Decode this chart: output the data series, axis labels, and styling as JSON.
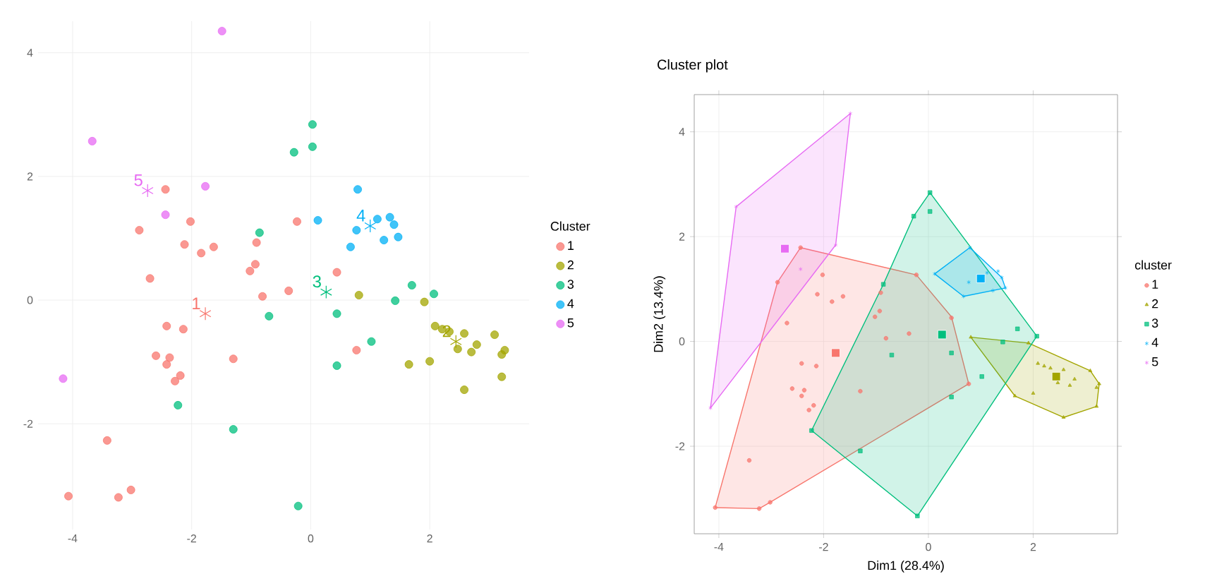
{
  "chart_data": [
    {
      "type": "scatter",
      "legend_title": "Cluster",
      "legend": "right",
      "grid": true,
      "xlim": [
        -4.58,
        3.67
      ],
      "ylim": [
        -3.71,
        4.51
      ],
      "xticks": [
        -4,
        -2,
        0,
        2
      ],
      "yticks": [
        -2,
        0,
        2,
        4
      ],
      "series": [
        {
          "name": "1",
          "color": "#f8766d",
          "marker": "circle",
          "x": [
            -2.44,
            -2.88,
            -2.02,
            -2.12,
            -1.84,
            -1.63,
            -0.91,
            -0.93,
            -1.02,
            -2.7,
            -0.23,
            0.44,
            -0.81,
            -0.37,
            -2.42,
            -2.14,
            -2.6,
            -2.37,
            -2.42,
            -2.19,
            -2.28,
            -1.3,
            0.77,
            -3.42,
            -4.07,
            -3.23,
            -3.02
          ],
          "values": [
            1.79,
            1.13,
            1.27,
            0.9,
            0.76,
            0.86,
            0.93,
            0.58,
            0.47,
            0.35,
            1.27,
            0.45,
            0.06,
            0.15,
            -0.42,
            -0.47,
            -0.9,
            -0.93,
            -1.04,
            -1.22,
            -1.31,
            -0.95,
            -0.81,
            -2.27,
            -3.17,
            -3.19,
            -3.07
          ]
        },
        {
          "name": "2",
          "color": "#a3a500",
          "marker": "circle",
          "x": [
            0.81,
            1.91,
            2.09,
            2.21,
            2.33,
            2.58,
            2.79,
            2.7,
            2.47,
            3.09,
            3.26,
            3.21,
            3.21,
            2.58,
            2.0,
            1.65
          ],
          "values": [
            0.08,
            -0.03,
            -0.42,
            -0.47,
            -0.51,
            -0.54,
            -0.72,
            -0.84,
            -0.79,
            -0.56,
            -0.81,
            -0.88,
            -1.24,
            -1.45,
            -0.99,
            -1.04
          ]
        },
        {
          "name": "3",
          "color": "#00bf7d",
          "marker": "circle",
          "x": [
            -0.28,
            0.03,
            0.03,
            -0.86,
            -0.7,
            0.44,
            0.44,
            -2.23,
            -1.3,
            -0.21,
            1.02,
            1.42,
            1.7,
            2.07
          ],
          "values": [
            2.39,
            2.84,
            2.48,
            1.09,
            -0.26,
            -0.22,
            -1.06,
            -1.7,
            -2.09,
            -3.33,
            -0.67,
            -0.01,
            0.24,
            0.1
          ]
        },
        {
          "name": "4",
          "color": "#00b0f6",
          "marker": "circle",
          "x": [
            0.79,
            0.12,
            0.77,
            0.67,
            1.12,
            1.33,
            1.4,
            1.47,
            1.23
          ],
          "values": [
            1.79,
            1.29,
            1.13,
            0.86,
            1.31,
            1.34,
            1.22,
            1.02,
            0.97
          ]
        },
        {
          "name": "5",
          "color": "#e76bf3",
          "marker": "circle",
          "x": [
            -1.49,
            -3.67,
            -1.77,
            -2.44,
            -4.16
          ],
          "values": [
            4.35,
            2.57,
            1.84,
            1.38,
            -1.27
          ]
        },
        {
          "marker": "cross",
          "x": [
            -1.77,
            2.44,
            0.26,
            1.0,
            -2.74
          ],
          "values": [
            -0.22,
            -0.67,
            0.13,
            1.2,
            1.77
          ],
          "colors": [
            "#f8766d",
            "#a3a500",
            "#00bf7d",
            "#00b0f6",
            "#e76bf3"
          ]
        }
      ],
      "annotations": [
        {
          "text": "1",
          "x": -1.77,
          "y": -0.22
        },
        {
          "text": "2",
          "x": 2.44,
          "y": -0.67
        },
        {
          "text": "3",
          "x": 0.26,
          "y": 0.13
        },
        {
          "text": "4",
          "x": 1.0,
          "y": 1.2
        },
        {
          "text": "5",
          "x": -2.74,
          "y": 1.77
        }
      ]
    },
    {
      "type": "scatter",
      "title": "Cluster plot",
      "xlabel": "Dim1 (28.4%)",
      "ylabel": "Dim2 (13.4%)",
      "legend_title": "cluster",
      "legend": "right",
      "grid": true,
      "xlim": [
        -4.47,
        3.61
      ],
      "ylim": [
        -3.67,
        4.71
      ],
      "xticks": [
        -4,
        -2,
        0,
        2
      ],
      "yticks": [
        -2,
        0,
        2,
        4
      ],
      "series": [
        {
          "type": "area",
          "color": "#f8766d",
          "x": [
            -2.44,
            -0.23,
            0.44,
            0.77,
            -3.02,
            -3.23,
            -4.07,
            -2.88
          ],
          "values": [
            1.79,
            1.27,
            0.47,
            -0.81,
            -3.07,
            -3.19,
            -3.17,
            1.13
          ]
        },
        {
          "type": "area",
          "color": "#a3a500",
          "x": [
            0.81,
            1.91,
            3.09,
            3.26,
            3.21,
            2.58,
            1.65
          ],
          "values": [
            0.08,
            -0.03,
            -0.56,
            -0.81,
            -1.24,
            -1.45,
            -1.04
          ]
        },
        {
          "type": "area",
          "color": "#00bf7d",
          "x": [
            0.03,
            2.07,
            -0.21,
            -2.23,
            -0.86,
            -0.28
          ],
          "values": [
            2.84,
            0.1,
            -3.33,
            -1.7,
            1.09,
            2.39
          ]
        },
        {
          "type": "area",
          "color": "#00b0f6",
          "x": [
            0.79,
            0.12,
            0.67,
            1.47,
            1.4
          ],
          "values": [
            1.79,
            1.29,
            0.86,
            1.02,
            1.22
          ]
        },
        {
          "type": "area",
          "color": "#e76bf3",
          "x": [
            -1.49,
            -3.67,
            -4.16,
            -1.77
          ],
          "values": [
            4.35,
            2.57,
            -1.27,
            1.84
          ]
        },
        {
          "name": "1",
          "color": "#f8766d",
          "marker": "circle",
          "x": [
            -2.44,
            -2.88,
            -2.02,
            -2.12,
            -1.84,
            -1.63,
            -0.91,
            -0.93,
            -1.02,
            -2.7,
            -0.23,
            0.44,
            -0.81,
            -0.37,
            -2.42,
            -2.14,
            -2.6,
            -2.37,
            -2.42,
            -2.19,
            -2.28,
            -1.3,
            0.77,
            -3.42,
            -4.07,
            -3.23,
            -3.02
          ],
          "values": [
            1.79,
            1.13,
            1.27,
            0.9,
            0.76,
            0.86,
            0.93,
            0.58,
            0.47,
            0.35,
            1.27,
            0.45,
            0.06,
            0.15,
            -0.42,
            -0.47,
            -0.9,
            -0.93,
            -1.04,
            -1.22,
            -1.31,
            -0.95,
            -0.81,
            -2.27,
            -3.17,
            -3.19,
            -3.07
          ]
        },
        {
          "name": "2",
          "color": "#a3a500",
          "marker": "triangle",
          "x": [
            0.81,
            1.91,
            2.09,
            2.21,
            2.33,
            2.58,
            2.79,
            2.7,
            2.47,
            3.09,
            3.26,
            3.21,
            3.21,
            2.58,
            2.0,
            1.65
          ],
          "values": [
            0.08,
            -0.03,
            -0.42,
            -0.47,
            -0.51,
            -0.54,
            -0.72,
            -0.84,
            -0.79,
            -0.56,
            -0.81,
            -0.88,
            -1.24,
            -1.45,
            -0.99,
            -1.04
          ]
        },
        {
          "name": "3",
          "color": "#00bf7d",
          "marker": "square",
          "x": [
            -0.28,
            0.03,
            0.03,
            -0.86,
            -0.7,
            0.44,
            0.44,
            -2.23,
            -1.3,
            -0.21,
            1.02,
            1.42,
            1.7,
            2.07
          ],
          "values": [
            2.39,
            2.84,
            2.48,
            1.09,
            -0.26,
            -0.22,
            -1.06,
            -1.7,
            -2.09,
            -3.33,
            -0.67,
            -0.01,
            0.24,
            0.1
          ]
        },
        {
          "name": "4",
          "color": "#00b0f6",
          "marker": "cross",
          "x": [
            0.79,
            0.12,
            0.77,
            0.67,
            1.12,
            1.33,
            1.4,
            1.47,
            1.23
          ],
          "values": [
            1.79,
            1.29,
            1.13,
            0.86,
            1.31,
            1.34,
            1.22,
            1.02,
            0.97
          ]
        },
        {
          "name": "5",
          "color": "#e76bf3",
          "marker": "cross",
          "x": [
            -1.49,
            -3.67,
            -1.77,
            -2.44,
            -4.16
          ],
          "values": [
            4.35,
            2.57,
            1.84,
            1.38,
            -1.27
          ]
        },
        {
          "marker": "square",
          "x": [
            -1.77,
            2.44,
            0.26,
            1.0,
            -2.74
          ],
          "values": [
            -0.22,
            -0.67,
            0.13,
            1.2,
            1.77
          ],
          "colors": [
            "#f8766d",
            "#a3a500",
            "#00bf7d",
            "#00b0f6",
            "#e76bf3"
          ]
        }
      ]
    }
  ]
}
